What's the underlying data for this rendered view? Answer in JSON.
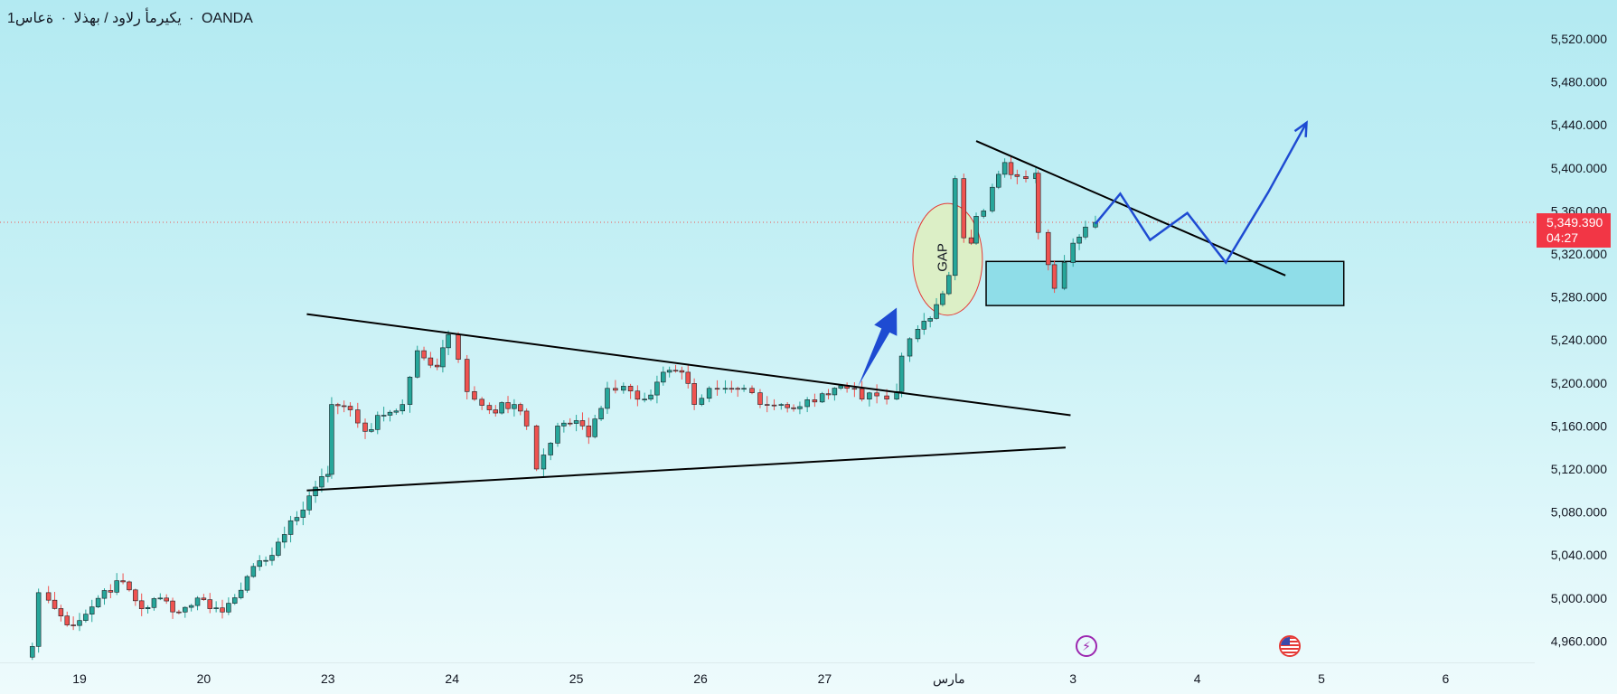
{
  "header": {
    "broker": "OANDA",
    "timeframe": "ةعاس1",
    "instrument": "يكيرمأ رلاود / بهذلا"
  },
  "price_tag": {
    "price": "5,349.390",
    "countdown": "04:27",
    "color": "#f23645"
  },
  "colors": {
    "bullish": "#26a69a",
    "bearish": "#ef5350",
    "projection": "#1e4bd2",
    "zone_fill": "#8fdde8",
    "gap_fill": "#dcefc6",
    "gap_stroke": "#e53935"
  },
  "annotations": {
    "gap_label": "GAP"
  },
  "events": [
    {
      "icon": "lightning-icon",
      "date": "3"
    },
    {
      "icon": "us-flag-icon",
      "date": "4"
    }
  ],
  "chart_data": {
    "type": "candlestick",
    "ylim": [
      4940,
      5540
    ],
    "y_ticks": [
      {
        "value": 4960,
        "label": "4,960.000"
      },
      {
        "value": 5000,
        "label": "5,000.000"
      },
      {
        "value": 5040,
        "label": "5,040.000"
      },
      {
        "value": 5080,
        "label": "5,080.000"
      },
      {
        "value": 5120,
        "label": "5,120.000"
      },
      {
        "value": 5160,
        "label": "5,160.000"
      },
      {
        "value": 5200,
        "label": "5,200.000"
      },
      {
        "value": 5240,
        "label": "5,240.000"
      },
      {
        "value": 5280,
        "label": "5,280.000"
      },
      {
        "value": 5320,
        "label": "5,320.000"
      },
      {
        "value": 5360,
        "label": "5,360.000"
      },
      {
        "value": 5400,
        "label": "5,400.000"
      },
      {
        "value": 5440,
        "label": "5,440.000"
      },
      {
        "value": 5480,
        "label": "5,480.000"
      },
      {
        "value": 5520,
        "label": "5,520.000"
      }
    ],
    "x_ticks": [
      {
        "label": "19",
        "day": 0
      },
      {
        "label": "20",
        "day": 1
      },
      {
        "label": "23",
        "day": 2
      },
      {
        "label": "24",
        "day": 3
      },
      {
        "label": "25",
        "day": 4
      },
      {
        "label": "26",
        "day": 5
      },
      {
        "label": "27",
        "day": 6
      },
      {
        "label": "مارس",
        "day": 7
      },
      {
        "label": "3",
        "day": 8
      },
      {
        "label": "4",
        "day": 9
      },
      {
        "label": "5",
        "day": 10
      },
      {
        "label": "6",
        "day": 11
      }
    ],
    "current_price": 5349.39,
    "candle_anchors": [
      [
        -0.45,
        4945
      ],
      [
        -0.38,
        4955
      ],
      [
        -0.33,
        5005
      ],
      [
        -0.25,
        4998
      ],
      [
        -0.1,
        4975
      ],
      [
        0.05,
        4985
      ],
      [
        0.2,
        5007
      ],
      [
        0.35,
        5015
      ],
      [
        0.5,
        4990
      ],
      [
        0.65,
        5000
      ],
      [
        0.8,
        4987
      ],
      [
        0.95,
        5000
      ],
      [
        1.15,
        4987
      ],
      [
        1.35,
        5020
      ],
      [
        1.5,
        5035
      ],
      [
        1.6,
        5052
      ],
      [
        1.75,
        5075
      ],
      [
        1.85,
        5095
      ],
      [
        1.95,
        5113
      ],
      [
        2.0,
        5115
      ],
      [
        2.03,
        5180
      ],
      [
        2.18,
        5175
      ],
      [
        2.3,
        5155
      ],
      [
        2.45,
        5170
      ],
      [
        2.6,
        5180
      ],
      [
        2.72,
        5230
      ],
      [
        2.88,
        5215
      ],
      [
        2.97,
        5245
      ],
      [
        3.05,
        5222
      ],
      [
        3.12,
        5192
      ],
      [
        3.3,
        5175
      ],
      [
        3.5,
        5180
      ],
      [
        3.6,
        5160
      ],
      [
        3.68,
        5120
      ],
      [
        3.85,
        5160
      ],
      [
        4.0,
        5165
      ],
      [
        4.1,
        5150
      ],
      [
        4.25,
        5195
      ],
      [
        4.38,
        5197
      ],
      [
        4.55,
        5185
      ],
      [
        4.7,
        5210
      ],
      [
        4.85,
        5210
      ],
      [
        4.95,
        5180
      ],
      [
        5.07,
        5195
      ],
      [
        5.2,
        5195
      ],
      [
        5.35,
        5195
      ],
      [
        5.48,
        5180
      ],
      [
        5.65,
        5180
      ],
      [
        5.8,
        5178
      ],
      [
        5.98,
        5190
      ],
      [
        6.18,
        5195
      ],
      [
        6.3,
        5185
      ],
      [
        6.42,
        5188
      ],
      [
        6.5,
        5185
      ],
      [
        6.58,
        5192
      ],
      [
        6.62,
        5225
      ],
      [
        6.75,
        5250
      ],
      [
        6.85,
        5260
      ],
      [
        6.95,
        5283
      ],
      [
        7.0,
        5300
      ],
      [
        7.05,
        5390
      ],
      [
        7.12,
        5335
      ],
      [
        7.18,
        5330
      ],
      [
        7.22,
        5355
      ],
      [
        7.28,
        5360
      ],
      [
        7.35,
        5382
      ],
      [
        7.45,
        5405
      ],
      [
        7.55,
        5392
      ],
      [
        7.62,
        5390
      ],
      [
        7.7,
        5395
      ],
      [
        7.72,
        5340
      ],
      [
        7.8,
        5310
      ],
      [
        7.85,
        5288
      ],
      [
        7.93,
        5312
      ],
      [
        8.0,
        5330
      ],
      [
        8.1,
        5345
      ],
      [
        8.18,
        5349.39
      ]
    ],
    "downtrend_line": [
      [
        1.83,
        5264
      ],
      [
        7.98,
        5170
      ]
    ],
    "uptrend_line": [
      [
        1.83,
        5100
      ],
      [
        7.94,
        5140
      ]
    ],
    "upper_resistance_line": [
      [
        7.22,
        5425
      ],
      [
        9.71,
        5300
      ]
    ],
    "support_zone": {
      "x_from": 7.3,
      "x_to": 10.18,
      "y_from": 5272,
      "y_to": 5313
    },
    "gap_ellipse": {
      "x_center": 6.99,
      "y_center": 5315,
      "x_radius": 0.28,
      "y_radius": 52
    },
    "breakout_arrow": {
      "from": [
        6.27,
        5197
      ],
      "to": [
        6.58,
        5270
      ]
    },
    "projection_path": [
      [
        8.18,
        5348
      ],
      [
        8.38,
        5376
      ],
      [
        8.62,
        5333
      ],
      [
        8.92,
        5358
      ],
      [
        9.23,
        5312
      ],
      [
        9.57,
        5377
      ],
      [
        9.88,
        5442
      ]
    ]
  }
}
